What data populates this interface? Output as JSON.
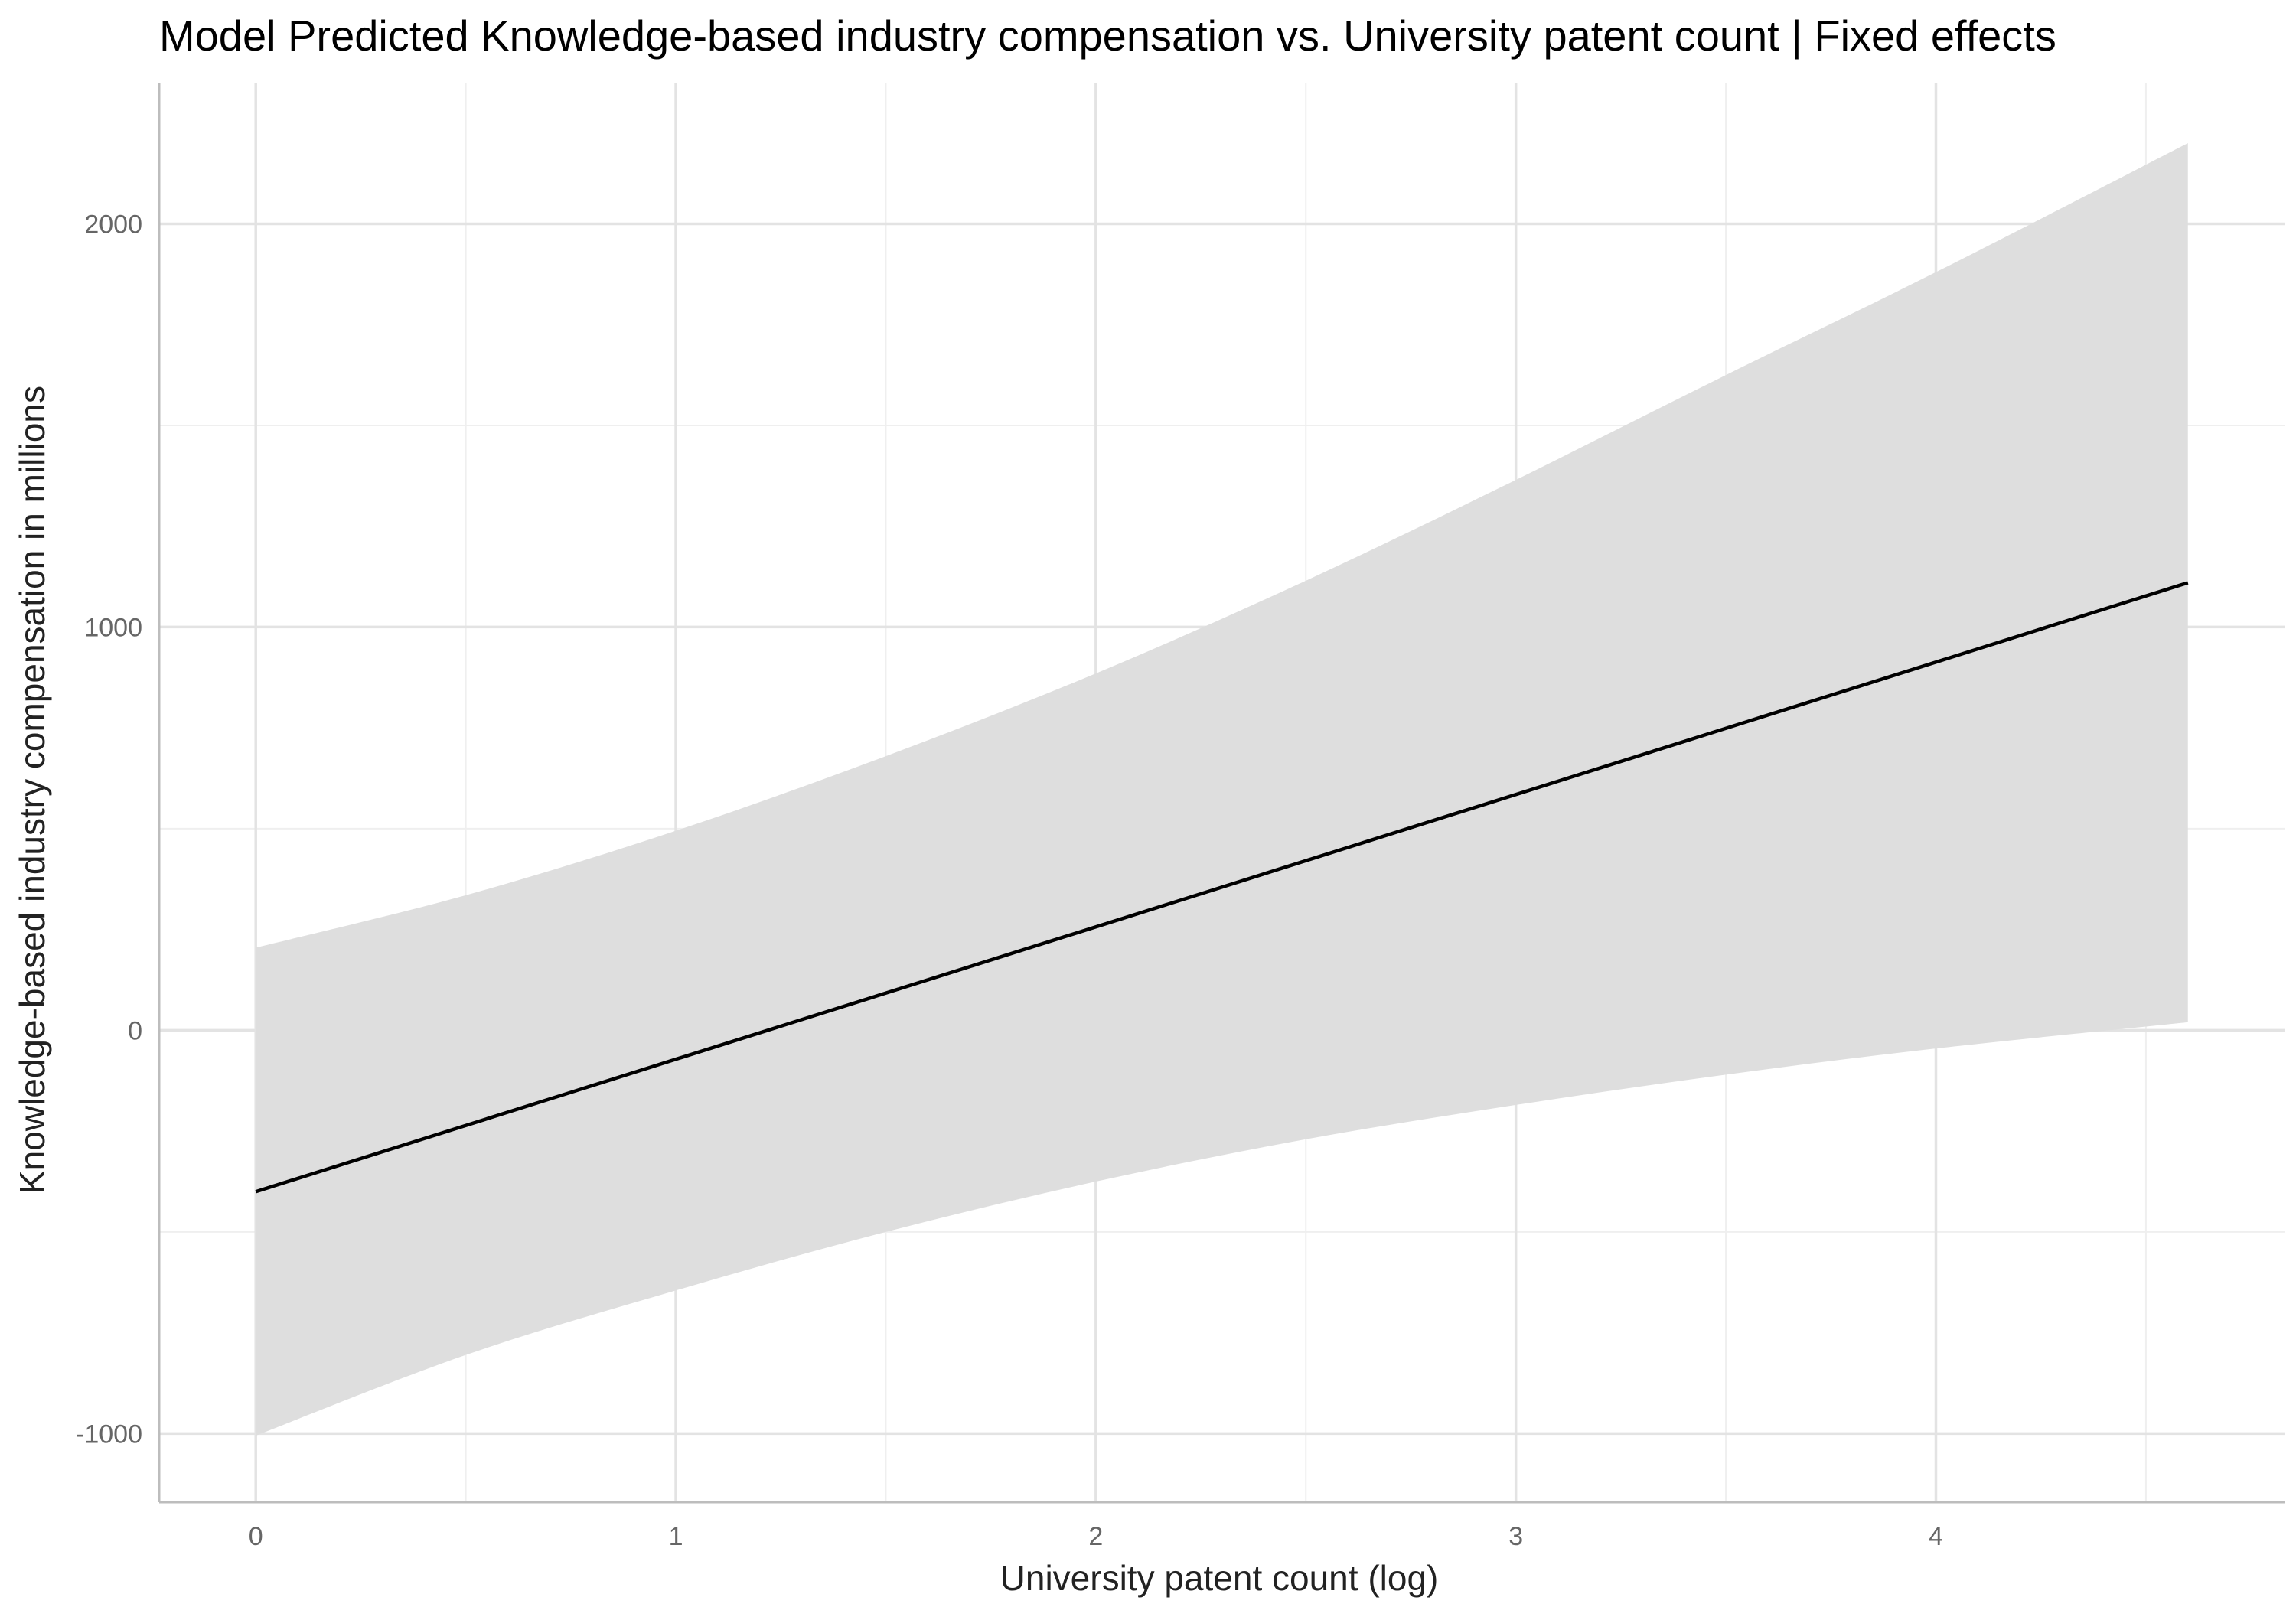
{
  "chart_data": {
    "type": "line",
    "title": "Model Predicted Knowledge-based industry compensation vs. University patent count | Fixed effects",
    "xlabel": "University patent count (log)",
    "ylabel": "Knowledge-based industry compensation in millions",
    "xlim": [
      -0.23,
      4.83
    ],
    "ylim": [
      -1170,
      2350
    ],
    "x_ticks": [
      0,
      1,
      2,
      3,
      4
    ],
    "x_tick_labels": [
      "0",
      "1",
      "2",
      "3",
      "4"
    ],
    "x_minor_ticks": [
      0.5,
      1.5,
      2.5,
      3.5,
      4.5
    ],
    "y_ticks": [
      -1000,
      0,
      1000,
      2000
    ],
    "y_tick_labels": [
      "-1000",
      "0",
      "1000",
      "2000"
    ],
    "y_minor_ticks": [
      -500,
      500,
      1500
    ],
    "grid": true,
    "legend": "none",
    "colors": {
      "line": "#000000",
      "ribbon": "#dedede",
      "grid_major": "#e3e3e3",
      "grid_minor": "#efefef",
      "axis": "#bdbdbd"
    },
    "series": [
      {
        "x": [
          0,
          4.6
        ],
        "y": [
          -400,
          1110
        ]
      }
    ],
    "ribbon": {
      "x": [
        0,
        0.5,
        1,
        1.5,
        2,
        2.5,
        3,
        3.5,
        4,
        4.6
      ],
      "lower": [
        -1005,
        -805,
        -645,
        -500,
        -375,
        -270,
        -185,
        -110,
        -45,
        20
      ],
      "upper": [
        205,
        335,
        495,
        680,
        885,
        1115,
        1365,
        1625,
        1880,
        2200
      ]
    }
  }
}
